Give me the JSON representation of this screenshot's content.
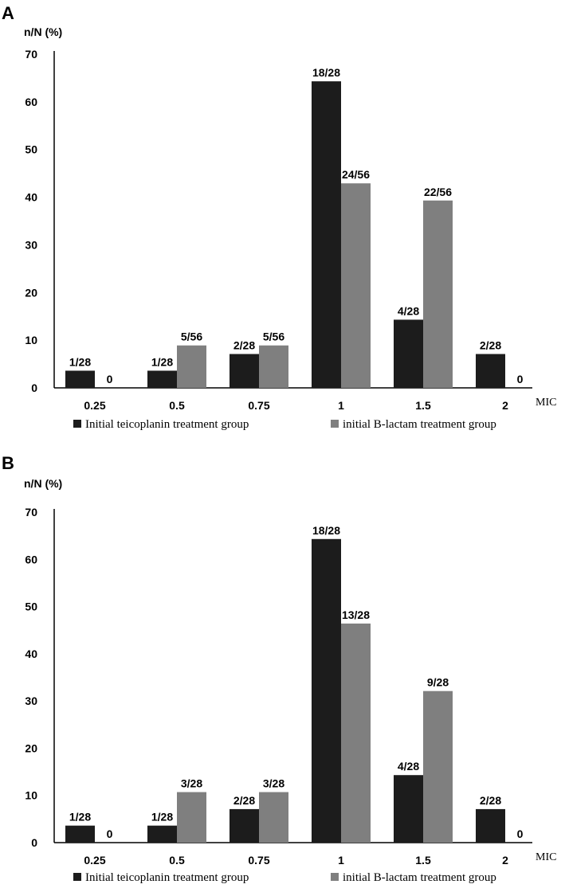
{
  "colors": {
    "series_dark": "#1c1c1c",
    "series_gray": "#7f7f7f",
    "background": "#ffffff"
  },
  "chart_data": [
    {
      "panel": "A",
      "type": "bar",
      "ylabel": "n/N (%)",
      "xlabel": "MIC",
      "ylim": [
        0,
        70
      ],
      "yticks": [
        "0",
        "10",
        "20",
        "30",
        "40",
        "50",
        "60",
        "70"
      ],
      "categories": [
        "0.25",
        "0.5",
        "0.75",
        "1",
        "1.5",
        "2"
      ],
      "series": [
        {
          "name": "Initial teicoplanin treatment group",
          "color": "#1c1c1c",
          "values": [
            3.6,
            3.6,
            7.1,
            64.3,
            14.3,
            7.1
          ],
          "labels": [
            "1/28",
            "1/28",
            "2/28",
            "18/28",
            "4/28",
            "2/28"
          ]
        },
        {
          "name": "initial B-lactam treatment group",
          "color": "#7f7f7f",
          "values": [
            0,
            8.9,
            8.9,
            42.9,
            39.3,
            0
          ],
          "labels": [
            "0",
            "5/56",
            "5/56",
            "24/56",
            "22/56",
            "0"
          ]
        }
      ]
    },
    {
      "panel": "B",
      "type": "bar",
      "ylabel": "n/N (%)",
      "xlabel": "MIC",
      "ylim": [
        0,
        70
      ],
      "yticks": [
        "0",
        "10",
        "20",
        "30",
        "40",
        "50",
        "60",
        "70"
      ],
      "categories": [
        "0.25",
        "0.5",
        "0.75",
        "1",
        "1.5",
        "2"
      ],
      "series": [
        {
          "name": "Initial teicoplanin treatment group",
          "color": "#1c1c1c",
          "values": [
            3.6,
            3.6,
            7.1,
            64.3,
            14.3,
            7.1
          ],
          "labels": [
            "1/28",
            "1/28",
            "2/28",
            "18/28",
            "4/28",
            "2/28"
          ]
        },
        {
          "name": "initial B-lactam treatment group",
          "color": "#7f7f7f",
          "values": [
            0,
            10.7,
            10.7,
            46.4,
            32.1,
            0
          ],
          "labels": [
            "0",
            "3/28",
            "3/28",
            "13/28",
            "9/28",
            "0"
          ]
        }
      ]
    }
  ]
}
